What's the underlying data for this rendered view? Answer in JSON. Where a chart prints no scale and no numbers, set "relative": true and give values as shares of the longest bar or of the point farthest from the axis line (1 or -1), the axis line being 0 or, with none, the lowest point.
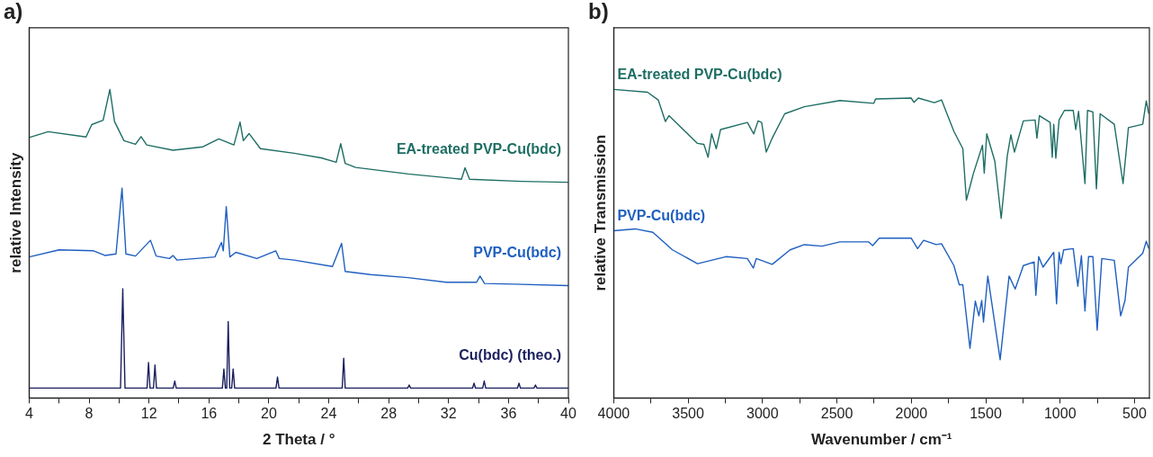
{
  "chart_data": [
    {
      "type": "line",
      "title": "a)",
      "xlabel": "2 Theta / °",
      "ylabel": "relative Intensity",
      "relative": true,
      "grid": false,
      "legend": false,
      "marker": "none",
      "line_style": "solid",
      "xlim": [
        4,
        40
      ],
      "xticks": [
        4,
        {
          "value": 6,
          "label": null
        },
        8,
        {
          "value": 10,
          "label": null
        },
        12,
        {
          "value": 14,
          "label": null
        },
        16,
        {
          "value": 18,
          "label": null
        },
        20,
        {
          "value": 22,
          "label": null
        },
        24,
        {
          "value": 26,
          "label": null
        },
        28,
        {
          "value": 30,
          "label": null
        },
        32,
        {
          "value": 34,
          "label": null
        },
        36,
        {
          "value": 38,
          "label": null
        },
        40
      ],
      "series": [
        {
          "name": "EA-treated PVP-Cu(bdc)",
          "color": "#1e6e64",
          "x": [
            4,
            5.27,
            7.8,
            8.18,
            8.94,
            9.39,
            9.7,
            10.33,
            11.1,
            11.47,
            11.85,
            13.6,
            15.6,
            16.66,
            17.67,
            18.08,
            18.3,
            18.68,
            19.44,
            21.7,
            23.5,
            24.5,
            24.8,
            25.1,
            25.8,
            29.3,
            32.86,
            33.1,
            33.4,
            36.9,
            40
          ],
          "values": [
            0.844,
            0.863,
            0.846,
            0.886,
            0.9,
            1.0,
            0.896,
            0.834,
            0.822,
            0.847,
            0.82,
            0.803,
            0.814,
            0.84,
            0.82,
            0.894,
            0.834,
            0.857,
            0.808,
            0.793,
            0.778,
            0.764,
            0.824,
            0.76,
            0.747,
            0.726,
            0.709,
            0.746,
            0.709,
            0.702,
            0.699
          ]
        },
        {
          "name": "PVP-Cu(bdc)",
          "color": "#1f5fc0",
          "x": [
            4,
            6.0,
            8.3,
            9.06,
            9.8,
            10.2,
            10.46,
            11.1,
            12.1,
            12.48,
            13.37,
            13.6,
            13.87,
            16.4,
            16.84,
            16.96,
            17.16,
            17.4,
            17.8,
            19.2,
            20.46,
            20.7,
            21.7,
            24.25,
            24.86,
            25.1,
            26.8,
            29.3,
            31.85,
            33.87,
            34.1,
            34.4,
            36.4,
            40
          ],
          "values": [
            0.457,
            0.48,
            0.477,
            0.462,
            0.467,
            0.68,
            0.467,
            0.46,
            0.511,
            0.46,
            0.452,
            0.462,
            0.447,
            0.457,
            0.504,
            0.477,
            0.62,
            0.457,
            0.472,
            0.452,
            0.477,
            0.452,
            0.447,
            0.426,
            0.501,
            0.41,
            0.4,
            0.39,
            0.375,
            0.375,
            0.395,
            0.371,
            0.369,
            0.364
          ]
        },
        {
          "name": "Cu(bdc) (theo.)",
          "color": "#1a1f5e",
          "x": [
            4,
            10.1,
            10.25,
            10.4,
            11.87,
            11.97,
            12.07,
            12.3,
            12.4,
            12.5,
            13.62,
            13.72,
            13.82,
            16.9,
            17.0,
            17.1,
            17.19,
            17.29,
            17.39,
            17.52,
            17.62,
            17.72,
            20.48,
            20.58,
            20.68,
            24.9,
            25.0,
            25.1,
            29.27,
            29.37,
            29.47,
            33.6,
            33.7,
            33.8,
            34.28,
            34.38,
            34.48,
            36.6,
            36.7,
            36.8,
            37.7,
            37.8,
            37.9,
            40
          ],
          "values": [
            0.032,
            0.032,
            0.354,
            0.032,
            0.032,
            0.115,
            0.032,
            0.032,
            0.107,
            0.032,
            0.032,
            0.055,
            0.032,
            0.032,
            0.094,
            0.032,
            0.032,
            0.248,
            0.032,
            0.032,
            0.094,
            0.032,
            0.032,
            0.068,
            0.032,
            0.032,
            0.129,
            0.032,
            0.032,
            0.042,
            0.032,
            0.032,
            0.048,
            0.032,
            0.032,
            0.055,
            0.032,
            0.032,
            0.048,
            0.032,
            0.032,
            0.042,
            0.032,
            0.032
          ]
        }
      ]
    },
    {
      "type": "line",
      "title": "b)",
      "xlabel": "Wavenumber / cm⁻¹",
      "ylabel": "relative Transmission",
      "relative": true,
      "grid": false,
      "legend": false,
      "marker": "none",
      "line_style": "solid",
      "xlim": [
        4000,
        400
      ],
      "xticks": [
        4000,
        {
          "value": 3750,
          "label": null
        },
        3500,
        {
          "value": 3250,
          "label": null
        },
        3000,
        {
          "value": 2750,
          "label": null
        },
        2500,
        {
          "value": 2250,
          "label": null
        },
        2000,
        {
          "value": 1750,
          "label": null
        },
        1500,
        {
          "value": 1250,
          "label": null
        },
        1000,
        {
          "value": 750,
          "label": null
        },
        500
      ],
      "series": [
        {
          "name": "EA-treated PVP-Cu(bdc)",
          "color": "#1e6e64",
          "x": [
            4000,
            3773,
            3701,
            3653,
            3629,
            3437,
            3394,
            3366,
            3342,
            3311,
            3282,
            3102,
            3059,
            3030,
            3006,
            2975,
            2935,
            2851,
            2719,
            2480,
            2252,
            2240,
            2001,
            1982,
            1953,
            1845,
            1797,
            1714,
            1654,
            1630,
            1582,
            1522,
            1510,
            1493,
            1439,
            1396,
            1355,
            1331,
            1307,
            1247,
            1168,
            1156,
            1139,
            1067,
            1053,
            1043,
            1029,
            1007,
            971,
            912,
            895,
            876,
            833,
            816,
            780,
            756,
            731,
            636,
            577,
            541,
            445,
            421,
            404
          ],
          "values": [
            1.0,
            0.991,
            0.966,
            0.896,
            0.915,
            0.825,
            0.822,
            0.78,
            0.856,
            0.808,
            0.87,
            0.893,
            0.856,
            0.898,
            0.893,
            0.797,
            0.842,
            0.921,
            0.944,
            0.964,
            0.955,
            0.969,
            0.972,
            0.958,
            0.972,
            0.957,
            0.966,
            0.864,
            0.808,
            0.641,
            0.729,
            0.819,
            0.729,
            0.856,
            0.768,
            0.582,
            0.785,
            0.853,
            0.797,
            0.898,
            0.901,
            0.842,
            0.915,
            0.893,
            0.78,
            0.887,
            0.777,
            0.901,
            0.932,
            0.932,
            0.87,
            0.929,
            0.695,
            0.932,
            0.927,
            0.678,
            0.921,
            0.887,
            0.695,
            0.876,
            0.887,
            0.963,
            0.921
          ]
        },
        {
          "name": "PVP-Cu(bdc)",
          "color": "#1f5fc0",
          "x": [
            4000,
            3856,
            3737,
            3605,
            3437,
            3246,
            3102,
            3062,
            3042,
            2935,
            2815,
            2719,
            2600,
            2480,
            2288,
            2260,
            2216,
            2001,
            1958,
            1917,
            1833,
            1797,
            1714,
            1678,
            1654,
            1606,
            1570,
            1546,
            1527,
            1515,
            1486,
            1403,
            1343,
            1302,
            1247,
            1175,
            1163,
            1144,
            1115,
            1043,
            1024,
            1007,
            995,
            976,
            912,
            881,
            857,
            833,
            809,
            780,
            751,
            720,
            636,
            593,
            564,
            541,
            445,
            421,
            404
          ],
          "values": [
            0.542,
            0.548,
            0.537,
            0.48,
            0.435,
            0.458,
            0.452,
            0.421,
            0.452,
            0.433,
            0.48,
            0.497,
            0.492,
            0.506,
            0.506,
            0.494,
            0.518,
            0.518,
            0.484,
            0.511,
            0.497,
            0.5,
            0.429,
            0.367,
            0.367,
            0.161,
            0.314,
            0.266,
            0.316,
            0.246,
            0.395,
            0.124,
            0.395,
            0.353,
            0.429,
            0.441,
            0.333,
            0.458,
            0.424,
            0.472,
            0.305,
            0.472,
            0.435,
            0.48,
            0.484,
            0.362,
            0.461,
            0.282,
            0.458,
            0.458,
            0.22,
            0.452,
            0.446,
            0.266,
            0.316,
            0.424,
            0.469,
            0.508,
            0.484
          ]
        }
      ]
    }
  ]
}
